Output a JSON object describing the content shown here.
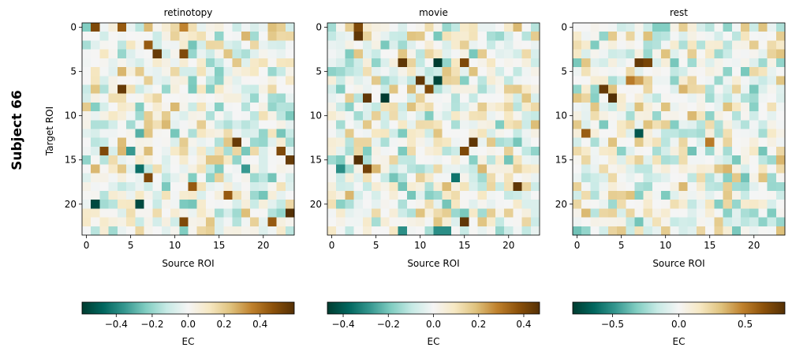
{
  "figure": {
    "row_label": "Subject 66",
    "colormap": "BrBG_r",
    "colormap_stops": [
      "#003c30",
      "#01665e",
      "#35978f",
      "#80cdc1",
      "#c7eae5",
      "#f5f5f5",
      "#f6e8c3",
      "#dfc27d",
      "#bf812d",
      "#8c510a",
      "#543005"
    ]
  },
  "chart_data": [
    {
      "type": "heatmap",
      "title": "retinotopy",
      "xlabel": "Source ROI",
      "ylabel": "Target ROI",
      "n": 24,
      "x_ticks": [
        0,
        5,
        10,
        15,
        20
      ],
      "y_ticks": [
        0,
        5,
        10,
        15,
        20
      ],
      "vlim": [
        -0.59,
        0.59
      ],
      "seed": 661,
      "strong": [
        [
          0,
          1,
          0.5
        ],
        [
          0,
          4,
          0.45
        ],
        [
          0,
          11,
          0.35
        ],
        [
          2,
          7,
          0.45
        ],
        [
          3,
          8,
          0.55
        ],
        [
          3,
          11,
          0.5
        ],
        [
          3,
          4,
          -0.2
        ],
        [
          7,
          4,
          0.55
        ],
        [
          12,
          10,
          -0.25
        ],
        [
          13,
          17,
          0.55
        ],
        [
          14,
          2,
          0.5
        ],
        [
          14,
          5,
          -0.35
        ],
        [
          14,
          22,
          0.5
        ],
        [
          15,
          23,
          0.55
        ],
        [
          16,
          6,
          -0.45
        ],
        [
          16,
          18,
          -0.35
        ],
        [
          17,
          7,
          0.5
        ],
        [
          18,
          12,
          0.45
        ],
        [
          19,
          16,
          0.45
        ],
        [
          20,
          1,
          -0.55
        ],
        [
          20,
          6,
          -0.55
        ],
        [
          21,
          23,
          0.6
        ],
        [
          22,
          11,
          0.5
        ],
        [
          22,
          21,
          0.45
        ],
        [
          12,
          6,
          -0.3
        ]
      ],
      "colorbar": {
        "label": "EC",
        "ticks": [
          -0.4,
          -0.2,
          0.0,
          0.2,
          0.4
        ]
      }
    },
    {
      "type": "heatmap",
      "title": "movie",
      "xlabel": "Source ROI",
      "ylabel": "",
      "n": 24,
      "x_ticks": [
        0,
        5,
        10,
        15,
        20
      ],
      "y_ticks": [
        0,
        5,
        10,
        15,
        20
      ],
      "vlim": [
        -0.47,
        0.47
      ],
      "seed": 662,
      "strong": [
        [
          0,
          3,
          0.4
        ],
        [
          1,
          3,
          0.45
        ],
        [
          4,
          8,
          0.45
        ],
        [
          4,
          12,
          -0.47
        ],
        [
          4,
          15,
          0.4
        ],
        [
          6,
          10,
          0.45
        ],
        [
          6,
          12,
          -0.45
        ],
        [
          7,
          11,
          0.4
        ],
        [
          8,
          4,
          0.45
        ],
        [
          8,
          6,
          -0.47
        ],
        [
          13,
          16,
          0.45
        ],
        [
          14,
          15,
          0.4
        ],
        [
          15,
          3,
          0.47
        ],
        [
          16,
          4,
          0.42
        ],
        [
          16,
          1,
          -0.3
        ],
        [
          18,
          21,
          0.45
        ],
        [
          22,
          15,
          0.45
        ],
        [
          23,
          8,
          -0.3
        ],
        [
          23,
          12,
          -0.3
        ],
        [
          23,
          13,
          -0.3
        ],
        [
          17,
          14,
          -0.35
        ]
      ],
      "colorbar": {
        "label": "EC",
        "ticks": [
          -0.4,
          -0.2,
          0.0,
          0.2,
          0.4
        ]
      }
    },
    {
      "type": "heatmap",
      "title": "rest",
      "xlabel": "Source ROI",
      "ylabel": "",
      "n": 24,
      "x_ticks": [
        0,
        5,
        10,
        15,
        20
      ],
      "y_ticks": [
        0,
        5,
        10,
        15,
        20
      ],
      "vlim": [
        -0.8,
        0.8
      ],
      "seed": 663,
      "strong": [
        [
          4,
          7,
          0.75
        ],
        [
          4,
          8,
          0.7
        ],
        [
          7,
          3,
          0.75
        ],
        [
          8,
          4,
          0.8
        ],
        [
          12,
          7,
          -0.7
        ],
        [
          12,
          1,
          0.6
        ],
        [
          13,
          15,
          0.5
        ],
        [
          6,
          6,
          0.5
        ],
        [
          6,
          7,
          0.4
        ]
      ],
      "colorbar": {
        "label": "EC",
        "ticks": [
          -0.5,
          0.0,
          0.5
        ]
      }
    }
  ]
}
